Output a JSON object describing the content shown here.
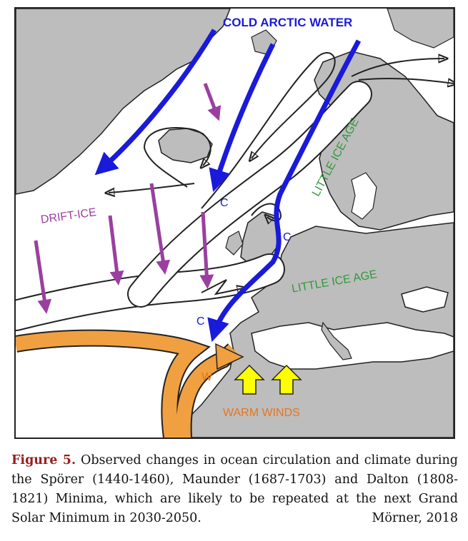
{
  "map": {
    "labels": {
      "cold_arctic_water": "COLD ARCTIC WATER",
      "drift_ice": "DRIFT-ICE",
      "little_ice_age_north": "LITTLE ICE AGE",
      "little_ice_age_central": "LITTLE ICE AGE",
      "warm_winds": "WARM WINDS",
      "c_north": "C",
      "c_middle": "C",
      "c_south": "C",
      "w": "W"
    },
    "colors": {
      "cold_current": "#1a1adb",
      "drift_ice": "#9a3fa0",
      "warm_current": "#f0a040",
      "warm_winds_arrow": "#ffff00",
      "warm_winds_text": "#e8741c",
      "little_ice_age_text": "#2f9a3a",
      "land": "#bdbdbd"
    }
  },
  "caption": {
    "figure_label": "Figure 5.",
    "text": " Observed changes in ocean circulation and climate during the Spörer (1440-1460), Maunder (1687-1703) and Dalton (1808-1821) Minima, which are likely to be repeated at the next Grand Solar Minimum in 2030-2050.",
    "author": "Mörner, 2018"
  }
}
